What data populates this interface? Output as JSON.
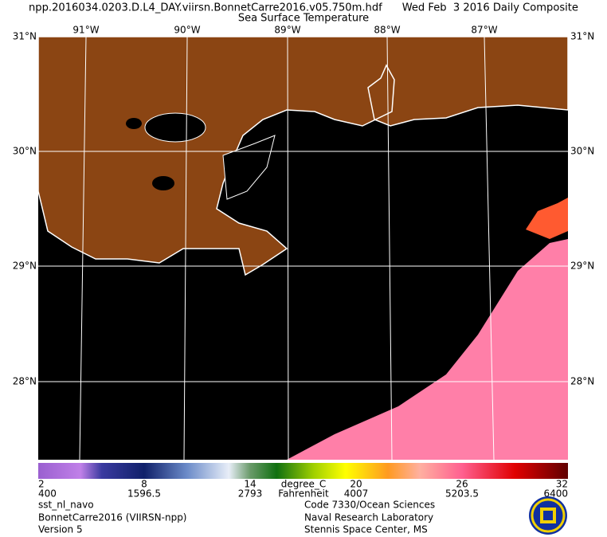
{
  "header": {
    "title": "npp.2016034.0203.D.L4_DAY.viirsn.BonnetCarre2016.v05.750m.hdf      Wed Feb  3 2016 Daily Composite",
    "subtitle": "Sea Surface Temperature"
  },
  "map": {
    "lon_labels": [
      "91°W",
      "90°W",
      "89°W",
      "88°W",
      "87°W"
    ],
    "lat_labels": [
      "31°N",
      "30°N",
      "29°N",
      "28°N"
    ]
  },
  "colorbar": {
    "celsius_ticks": [
      2,
      8,
      14,
      20,
      26,
      32
    ],
    "fahrenheit_ticks": [
      400,
      1596.5,
      2793,
      4007,
      5203.5,
      6400
    ],
    "celsius_unit": "degree_C",
    "fahrenheit_unit": "Fahrenheit"
  },
  "footer": {
    "left": [
      "sst_nl_navo",
      "BonnetCarre2016 (VIIRSN-npp)",
      "Version 5"
    ],
    "right": [
      "Code 7330/Ocean Sciences",
      "Naval Research Laboratory",
      "Stennis Space Center, MS"
    ]
  }
}
